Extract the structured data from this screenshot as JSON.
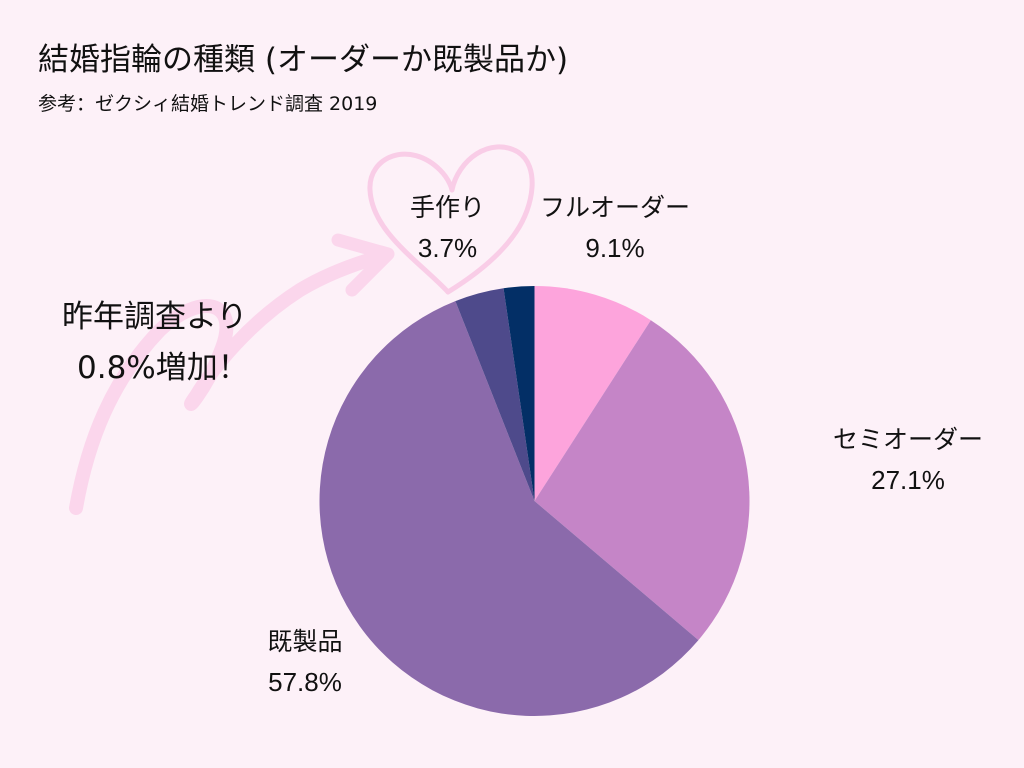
{
  "header": {
    "title": "結婚指輪の種類 (オーダーか既製品か)",
    "subtitle": "参考：ゼクシィ結婚トレンド調査 2019"
  },
  "annotation": {
    "line1": "昨年調査より",
    "line2": "0.8%増加！"
  },
  "labels": {
    "full_order": {
      "name": "フルオーダー",
      "pct": "9.1%"
    },
    "semi_order": {
      "name": "セミオーダー",
      "pct": "27.1%"
    },
    "ready_made": {
      "name": "既製品",
      "pct": "57.8%"
    },
    "handmade": {
      "name": "手作り",
      "pct": "3.7%"
    }
  },
  "colors": {
    "background": "#fdf1f8",
    "full_order": "#fda4dc",
    "semi_order": "#c585c7",
    "ready_made": "#8b6aab",
    "handmade": "#4e4a8b",
    "unlabeled": "#032f66",
    "decoration": "#fbd3ea"
  },
  "chart_data": {
    "type": "pie",
    "title": "結婚指輪の種類 (オーダーか既製品か)",
    "subtitle": "参考：ゼクシィ結婚トレンド調査 2019",
    "start_angle": "12 o'clock, clockwise",
    "categories": [
      "フルオーダー",
      "セミオーダー",
      "既製品",
      "手作り",
      "(unlabeled)"
    ],
    "values": [
      9.1,
      27.1,
      57.8,
      3.7,
      2.3
    ],
    "unit": "%",
    "colors": [
      "#fda4dc",
      "#c585c7",
      "#8b6aab",
      "#4e4a8b",
      "#032f66"
    ],
    "annotations": [
      "昨年調査より 0.8%増加！ (arrow pointing to 手作り)"
    ],
    "legend": "none (direct labels)"
  }
}
